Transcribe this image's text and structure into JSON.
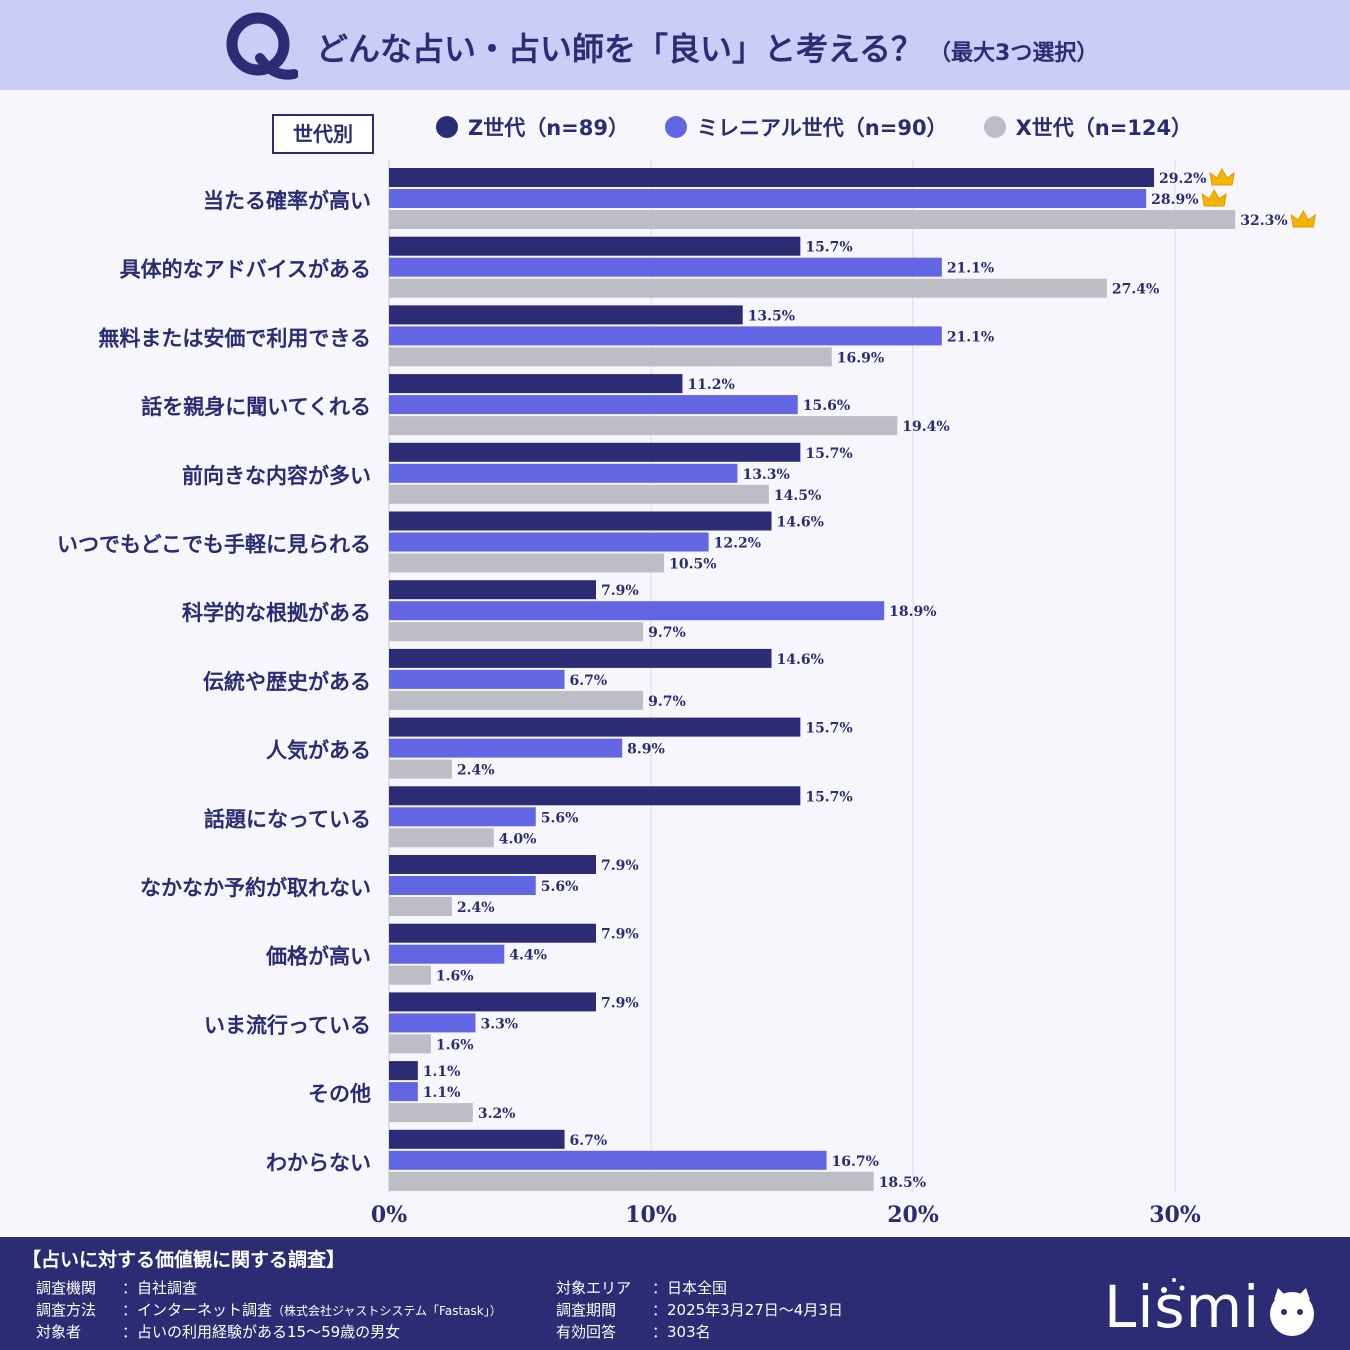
{
  "header": {
    "q_letter": "Q",
    "title": "どんな占い・占い師を「良い」と考える？",
    "subtitle": "（最大3つ選択）"
  },
  "badge": "世代別",
  "legend": [
    {
      "label": "Z世代（n=89）",
      "color": "#2b2c73"
    },
    {
      "label": "ミレニアル世代（n=90）",
      "color": "#6266e3"
    },
    {
      "label": "X世代（n=124）",
      "color": "#bdbdc6"
    }
  ],
  "chart_data": {
    "type": "bar",
    "orientation": "horizontal",
    "categories": [
      "当たる確率が高い",
      "具体的なアドバイスがある",
      "無料または安価で利用できる",
      "話を親身に聞いてくれる",
      "前向きな内容が多い",
      "いつでもどこでも手軽に見られる",
      "科学的な根拠がある",
      "伝統や歴史がある",
      "人気がある",
      "話題になっている",
      "なかなか予約が取れない",
      "価格が高い",
      "いま流行っている",
      "その他",
      "わからない"
    ],
    "series": [
      {
        "name": "Z世代（n=89）",
        "color": "#2b2c73",
        "values": [
          29.2,
          15.7,
          13.5,
          11.2,
          15.7,
          14.6,
          7.9,
          14.6,
          15.7,
          15.7,
          7.9,
          7.9,
          7.9,
          1.1,
          6.7
        ]
      },
      {
        "name": "ミレニアル世代（n=90）",
        "color": "#6266e3",
        "values": [
          28.9,
          21.1,
          21.1,
          15.6,
          13.3,
          12.2,
          18.9,
          6.7,
          8.9,
          5.6,
          5.6,
          4.4,
          3.3,
          1.1,
          16.7
        ]
      },
      {
        "name": "X世代（n=124）",
        "color": "#bdbdc6",
        "values": [
          32.3,
          27.4,
          16.9,
          19.4,
          14.5,
          10.5,
          9.7,
          9.7,
          2.4,
          4.0,
          2.4,
          1.6,
          1.6,
          3.2,
          18.5
        ]
      }
    ],
    "xticks": [
      "0%",
      "10%",
      "20%",
      "30%"
    ],
    "xtick_values": [
      0,
      10,
      20,
      30
    ],
    "xlim": [
      0,
      35
    ],
    "grid": true,
    "crown_icon": "crown-icon"
  },
  "footer": {
    "title": "【占いに対する価値観に関する調査】",
    "left": [
      {
        "key": "調査機関",
        "value": "：自社調査",
        "small": ""
      },
      {
        "key": "調査方法",
        "value": "：インターネット調査",
        "small": "（株式会社ジャストシステム「Fastask」）"
      },
      {
        "key": "対象者",
        "value": "：占いの利用経験がある15～59歳の男女",
        "small": ""
      }
    ],
    "right": [
      {
        "key": "対象エリア",
        "value": "：日本全国"
      },
      {
        "key": "調査期間",
        "value": "：2025年3月27日～4月3日"
      },
      {
        "key": "有効回答",
        "value": "：303名"
      }
    ],
    "logo": "Lismi"
  }
}
